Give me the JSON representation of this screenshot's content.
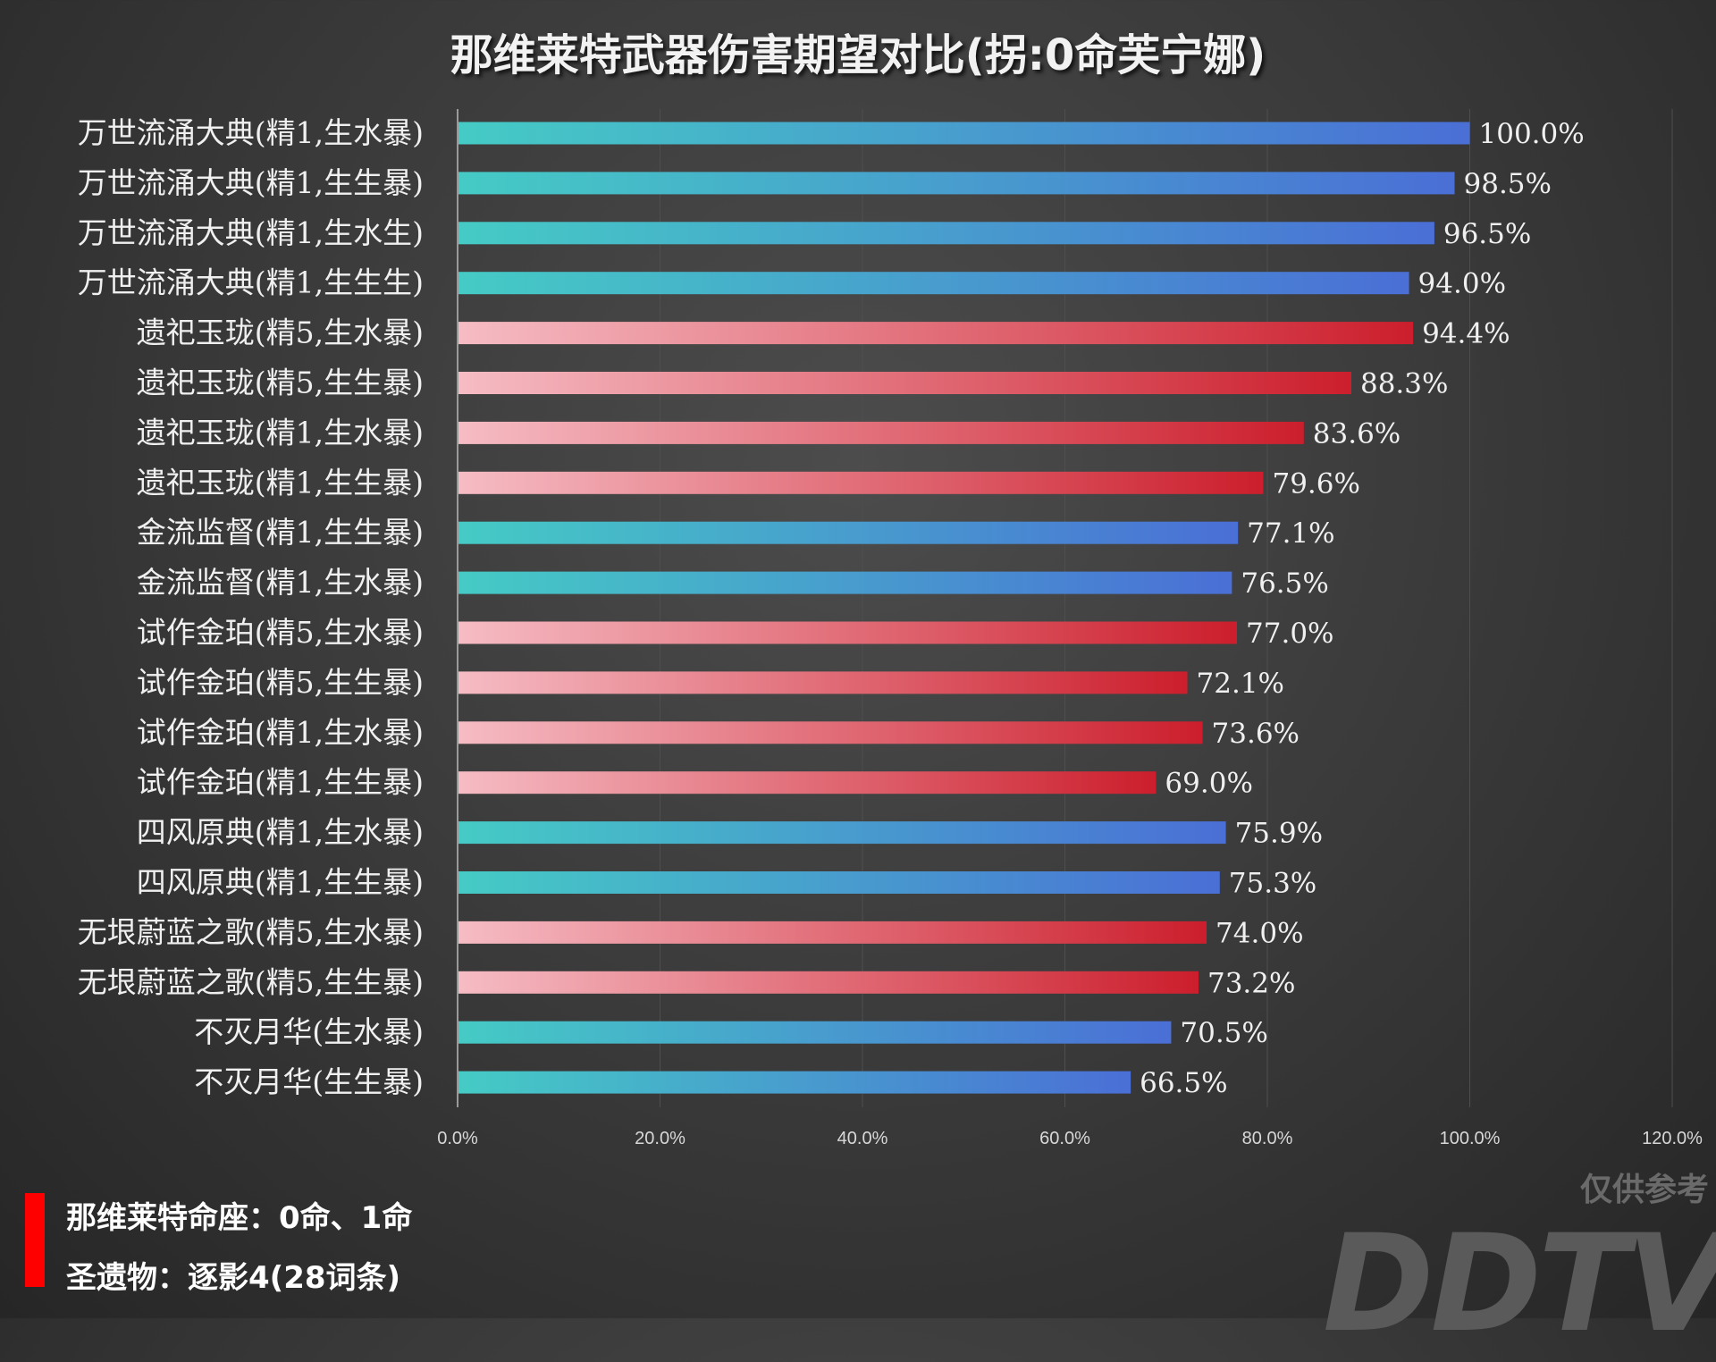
{
  "chart_data": {
    "type": "bar",
    "orientation": "horizontal",
    "title": "那维莱特武器伤害期望对比(拐:0命芙宁娜)",
    "categories": [
      "万世流涌大典(精1,生水暴)",
      "万世流涌大典(精1,生生暴)",
      "万世流涌大典(精1,生水生)",
      "万世流涌大典(精1,生生生)",
      "遗祀玉珑(精5,生水暴)",
      "遗祀玉珑(精5,生生暴)",
      "遗祀玉珑(精1,生水暴)",
      "遗祀玉珑(精1,生生暴)",
      "金流监督(精1,生生暴)",
      "金流监督(精1,生水暴)",
      "试作金珀(精5,生水暴)",
      "试作金珀(精5,生生暴)",
      "试作金珀(精1,生水暴)",
      "试作金珀(精1,生生暴)",
      "四风原典(精1,生水暴)",
      "四风原典(精1,生生暴)",
      "无垠蔚蓝之歌(精5,生水暴)",
      "无垠蔚蓝之歌(精5,生生暴)",
      "不灭月华(生水暴)",
      "不灭月华(生生暴)"
    ],
    "values": [
      100.0,
      98.5,
      96.5,
      94.0,
      94.4,
      88.3,
      83.6,
      79.6,
      77.1,
      76.5,
      77.0,
      72.1,
      73.6,
      69.0,
      75.9,
      75.3,
      74.0,
      73.2,
      70.5,
      66.5
    ],
    "data_labels": [
      "100.0%",
      "98.5%",
      "96.5%",
      "94.0%",
      "94.4%",
      "88.3%",
      "83.6%",
      "79.6%",
      "77.1%",
      "76.5%",
      "77.0%",
      "72.1%",
      "73.6%",
      "69.0%",
      "75.9%",
      "75.3%",
      "74.0%",
      "73.2%",
      "70.5%",
      "66.5%"
    ],
    "color_groups": [
      "blue",
      "blue",
      "blue",
      "blue",
      "red",
      "red",
      "red",
      "red",
      "blue",
      "blue",
      "red",
      "red",
      "red",
      "red",
      "blue",
      "blue",
      "red",
      "red",
      "blue",
      "blue"
    ],
    "colors": {
      "blue": [
        "#45cbc5",
        "#4a6fd6"
      ],
      "red": [
        "#f6bcc4",
        "#cc1e2c"
      ]
    },
    "xlim": [
      0,
      120
    ],
    "xticks": [
      "0.0%",
      "20.0%",
      "40.0%",
      "60.0%",
      "80.0%",
      "100.0%",
      "120.0%"
    ],
    "xtick_values": [
      0,
      20,
      40,
      60,
      80,
      100,
      120
    ],
    "grid": true
  },
  "legend": {
    "line1": "那维莱特命座：0命、1命",
    "line2": "圣遗物：逐影4(28词条)",
    "marker_color": "#ff0000"
  },
  "watermark": {
    "text1": "仅供参考",
    "text2": "DDTV"
  }
}
